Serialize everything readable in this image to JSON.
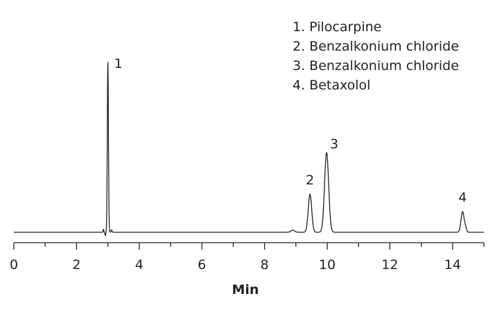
{
  "chart_data": {
    "type": "line",
    "xlabel": "Min",
    "ylabel": "",
    "xlim": [
      0,
      15
    ],
    "ylim": [
      0,
      100
    ],
    "x_ticks": [
      "0",
      "2",
      "4",
      "6",
      "8",
      "10",
      "12",
      "14"
    ],
    "baseline": 2,
    "grid": false,
    "legend_position": "top-right",
    "legend": [
      "1. Pilocarpine",
      "2. Benzalkonium chloride",
      "3. Benzalkonium chloride",
      "4. Betaxolol"
    ],
    "peaks": [
      {
        "label": "1",
        "rt": 3.0,
        "height": 100
      },
      {
        "label": "2",
        "rt": 9.45,
        "height": 24
      },
      {
        "label": "3",
        "rt": 9.98,
        "height": 48
      },
      {
        "label": "4",
        "rt": 14.32,
        "height": 14
      }
    ],
    "line_color": "#231f20"
  }
}
